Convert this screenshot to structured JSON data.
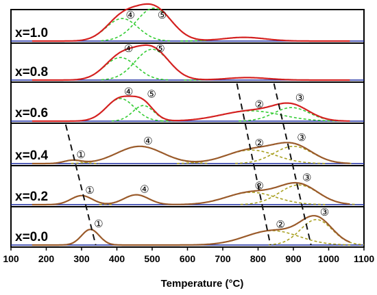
{
  "chart_data": {
    "type": "line",
    "xlabel": "Temperature (°C)",
    "xlim": [
      100,
      1100
    ],
    "x_ticks": [
      "100",
      "200",
      "300",
      "400",
      "500",
      "600",
      "700",
      "800",
      "900",
      "1000",
      "1100"
    ],
    "grid": false,
    "legend": "none",
    "colors": {
      "envelope_upper": "#d42020",
      "envelope_lower": "#9a5a2a",
      "fit_upper": "#33cc33",
      "fit_lower": "#a8a020",
      "baseline": "#1a2aa0",
      "dash": "#111111"
    },
    "panels": [
      {
        "label": "x=1.0",
        "peaks": [
          {
            "id": "4",
            "marker": "④",
            "center": 415,
            "height": 0.55,
            "width": 45
          },
          {
            "id": "5",
            "marker": "⑤",
            "center": 505,
            "height": 0.8,
            "width": 50
          },
          {
            "id": "",
            "marker": "",
            "center": 760,
            "height": 0.09,
            "width": 60
          }
        ]
      },
      {
        "label": "x=0.8",
        "peaks": [
          {
            "id": "4",
            "marker": "④",
            "center": 410,
            "height": 0.55,
            "width": 45
          },
          {
            "id": "5",
            "marker": "⑤",
            "center": 500,
            "height": 0.75,
            "width": 48
          },
          {
            "id": "",
            "marker": "",
            "center": 770,
            "height": 0.06,
            "width": 60
          }
        ]
      },
      {
        "label": "x=0.6",
        "peaks": [
          {
            "id": "4",
            "marker": "④",
            "center": 410,
            "height": 0.55,
            "width": 40
          },
          {
            "id": "5",
            "marker": "⑤",
            "center": 475,
            "height": 0.38,
            "width": 30
          },
          {
            "id": "2",
            "marker": "②",
            "center": 780,
            "height": 0.25,
            "width": 85
          },
          {
            "id": "3",
            "marker": "③",
            "center": 895,
            "height": 0.33,
            "width": 50
          }
        ]
      },
      {
        "label": "x=0.4",
        "peaks": [
          {
            "id": "1",
            "marker": "①",
            "center": 275,
            "height": 0.08,
            "width": 25
          },
          {
            "id": "4",
            "marker": "④",
            "center": 465,
            "height": 0.42,
            "width": 65
          },
          {
            "id": "2",
            "marker": "②",
            "center": 780,
            "height": 0.33,
            "width": 70
          },
          {
            "id": "3",
            "marker": "③",
            "center": 900,
            "height": 0.42,
            "width": 55
          }
        ]
      },
      {
        "label": "x=0.2",
        "peaks": [
          {
            "id": "1",
            "marker": "①",
            "center": 300,
            "height": 0.22,
            "width": 30
          },
          {
            "id": "4",
            "marker": "④",
            "center": 455,
            "height": 0.24,
            "width": 35
          },
          {
            "id": "2",
            "marker": "②",
            "center": 780,
            "height": 0.3,
            "width": 70
          },
          {
            "id": "3",
            "marker": "③",
            "center": 915,
            "height": 0.48,
            "width": 55
          }
        ]
      },
      {
        "label": "x=0.0",
        "peaks": [
          {
            "id": "1",
            "marker": "①",
            "center": 325,
            "height": 0.38,
            "width": 25
          },
          {
            "id": "2",
            "marker": "②",
            "center": 840,
            "height": 0.35,
            "width": 75
          },
          {
            "id": "3",
            "marker": "③",
            "center": 965,
            "height": 0.62,
            "width": 45
          }
        ]
      }
    ],
    "dashed_trend_lines": [
      {
        "from": [
          255,
          "x=0.4"
        ],
        "to": [
          340,
          "x=0.0"
        ]
      },
      {
        "from": [
          740,
          "x=0.6"
        ],
        "to": [
          835,
          "x=0.0"
        ]
      },
      {
        "from": [
          845,
          "x=0.6"
        ],
        "to": [
          950,
          "x=0.0"
        ]
      }
    ]
  }
}
